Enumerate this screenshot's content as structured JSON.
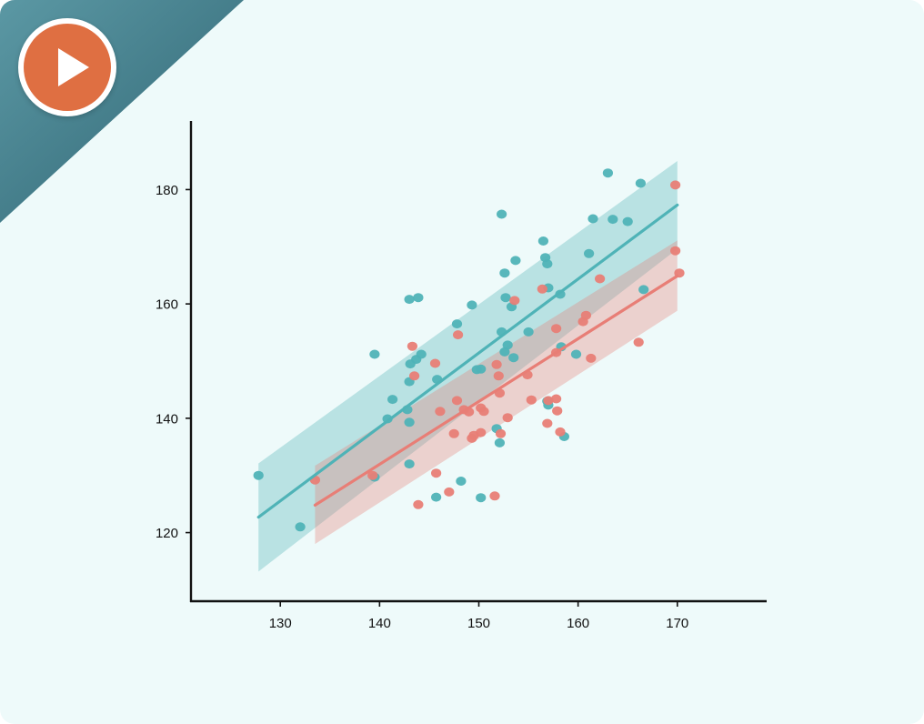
{
  "colors": {
    "card_bg": "#eefafa",
    "corner_gradient_start": "#5b98a4",
    "corner_gradient_end": "#2f6472",
    "play_button": "#df6f42",
    "axis": "#111111"
  },
  "icons": {
    "play": "play-icon"
  },
  "chart_data": {
    "type": "scatter",
    "title": "",
    "xlabel": "",
    "ylabel": "",
    "xlim": [
      121,
      179
    ],
    "ylim": [
      108,
      192
    ],
    "x_ticks": [
      130,
      140,
      150,
      160,
      170
    ],
    "y_ticks": [
      120,
      140,
      160,
      180
    ],
    "grid": false,
    "legend": "none",
    "series": [
      {
        "color": "#4fb3b7",
        "points": [
          [
            127.8,
            130
          ],
          [
            132,
            121
          ],
          [
            139.5,
            151.2
          ],
          [
            139.5,
            129.7
          ],
          [
            141.3,
            143.3
          ],
          [
            140.8,
            139.9
          ],
          [
            142.8,
            141.5
          ],
          [
            143,
            146.4
          ],
          [
            143.1,
            149.5
          ],
          [
            143.7,
            150.3
          ],
          [
            144.2,
            151.2
          ],
          [
            143,
            160.8
          ],
          [
            143.9,
            161.1
          ],
          [
            143,
            132
          ],
          [
            143,
            139.3
          ],
          [
            145.8,
            146.8
          ],
          [
            145.7,
            126.2
          ],
          [
            147.8,
            156.5
          ],
          [
            148.2,
            129
          ],
          [
            149.3,
            159.8
          ],
          [
            149.8,
            148.5
          ],
          [
            150.2,
            148.6
          ],
          [
            150.2,
            126.1
          ],
          [
            151.8,
            138.2
          ],
          [
            152.3,
            175.7
          ],
          [
            152.6,
            165.4
          ],
          [
            152.6,
            151.6
          ],
          [
            152.9,
            152.8
          ],
          [
            152.7,
            161.1
          ],
          [
            153.5,
            150.6
          ],
          [
            153.7,
            167.6
          ],
          [
            153.3,
            159.5
          ],
          [
            152.1,
            135.7
          ],
          [
            156.5,
            171
          ],
          [
            156.7,
            168.1
          ],
          [
            157,
            162.8
          ],
          [
            156.9,
            167
          ],
          [
            156.9,
            143
          ],
          [
            157,
            142.3
          ],
          [
            158.3,
            152.5
          ],
          [
            158.2,
            161.7
          ],
          [
            158.6,
            136.8
          ],
          [
            161.1,
            168.8
          ],
          [
            161.5,
            174.9
          ],
          [
            163,
            182.9
          ],
          [
            163.5,
            174.8
          ],
          [
            165,
            174.4
          ],
          [
            166.3,
            181.1
          ],
          [
            166.6,
            162.5
          ],
          [
            152.3,
            155.1
          ],
          [
            155,
            155.1
          ],
          [
            159.8,
            151.2
          ]
        ],
        "fit": {
          "x_start": 127.8,
          "y_start": 122.7,
          "x_end": 170,
          "y_end": 177.3,
          "ci_start": [
            113.2,
            132.1
          ],
          "ci_end": [
            169.6,
            185
          ]
        }
      },
      {
        "color": "#e87e76",
        "points": [
          [
            133.5,
            129.2
          ],
          [
            139.3,
            130
          ],
          [
            143.3,
            152.6
          ],
          [
            143.5,
            147.4
          ],
          [
            143.9,
            124.9
          ],
          [
            145.6,
            149.6
          ],
          [
            145.7,
            130.4
          ],
          [
            146.1,
            141.2
          ],
          [
            147,
            127.1
          ],
          [
            147.5,
            137.3
          ],
          [
            147.8,
            143.1
          ],
          [
            147.9,
            154.6
          ],
          [
            148.5,
            141.5
          ],
          [
            149,
            141.1
          ],
          [
            149.3,
            136.5
          ],
          [
            149.5,
            137
          ],
          [
            150.2,
            137.5
          ],
          [
            150.2,
            141.8
          ],
          [
            150.5,
            141.2
          ],
          [
            151.6,
            126.4
          ],
          [
            151.8,
            149.4
          ],
          [
            152,
            147.4
          ],
          [
            152.1,
            144.4
          ],
          [
            152.2,
            137.3
          ],
          [
            152.9,
            140.1
          ],
          [
            153.6,
            160.6
          ],
          [
            154.9,
            147.6
          ],
          [
            155.3,
            143.2
          ],
          [
            156.4,
            162.6
          ],
          [
            156.9,
            139.1
          ],
          [
            157,
            143.1
          ],
          [
            157.8,
            143.4
          ],
          [
            157.9,
            141.3
          ],
          [
            157.8,
            155.7
          ],
          [
            157.8,
            151.5
          ],
          [
            158.2,
            137.6
          ],
          [
            160.5,
            156.9
          ],
          [
            160.8,
            158
          ],
          [
            161.3,
            150.5
          ],
          [
            162.2,
            164.4
          ],
          [
            166.1,
            153.3
          ],
          [
            169.8,
            180.8
          ],
          [
            169.8,
            169.3
          ],
          [
            170.2,
            165.4
          ]
        ],
        "fit": {
          "x_start": 133.5,
          "y_start": 124.8,
          "x_end": 170,
          "y_end": 164.9,
          "ci_start": [
            118,
            131.7
          ],
          "ci_end": [
            158.8,
            171.1
          ]
        }
      }
    ]
  }
}
